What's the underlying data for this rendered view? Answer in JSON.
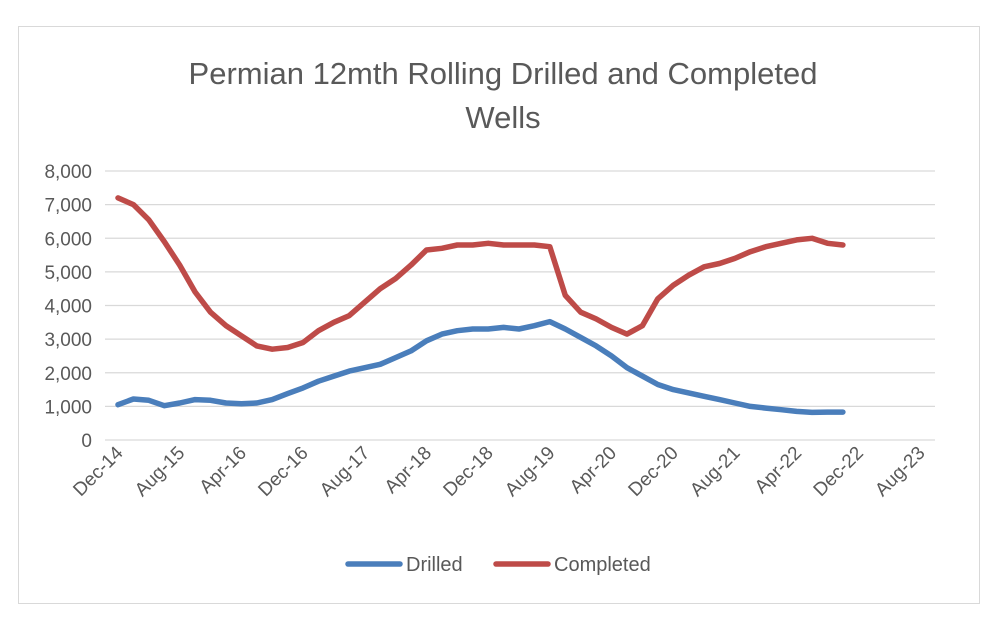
{
  "chart_data": {
    "type": "line",
    "title_lines": [
      "Permian 12mth Rolling Drilled and Completed",
      "Wells"
    ],
    "xlabel": "",
    "ylabel": "",
    "ylim": [
      0,
      8000
    ],
    "y_ticks": [
      0,
      1000,
      2000,
      3000,
      4000,
      5000,
      6000,
      7000,
      8000
    ],
    "y_tick_labels": [
      "0",
      "1,000",
      "2,000",
      "3,000",
      "4,000",
      "5,000",
      "6,000",
      "7,000",
      "8,000"
    ],
    "x_tick_labels": [
      "Dec-14",
      "Aug-15",
      "Apr-16",
      "Dec-16",
      "Aug-17",
      "Apr-18",
      "Dec-18",
      "Aug-19",
      "Apr-20",
      "Dec-20",
      "Aug-21",
      "Apr-22",
      "Dec-22",
      "Aug-23"
    ],
    "x_tick_month_index": [
      0,
      8,
      16,
      24,
      32,
      40,
      48,
      56,
      64,
      72,
      80,
      88,
      96,
      104
    ],
    "x_month_range": [
      0,
      104
    ],
    "grid": true,
    "legend_position": "bottom",
    "series": [
      {
        "name": "Drilled",
        "color": "#4a7ebb",
        "points": [
          [
            0,
            1050
          ],
          [
            2,
            1220
          ],
          [
            4,
            1180
          ],
          [
            6,
            1020
          ],
          [
            8,
            1100
          ],
          [
            10,
            1200
          ],
          [
            12,
            1180
          ],
          [
            14,
            1100
          ],
          [
            16,
            1080
          ],
          [
            18,
            1100
          ],
          [
            20,
            1200
          ],
          [
            22,
            1380
          ],
          [
            24,
            1550
          ],
          [
            26,
            1750
          ],
          [
            28,
            1900
          ],
          [
            30,
            2050
          ],
          [
            32,
            2150
          ],
          [
            34,
            2250
          ],
          [
            36,
            2450
          ],
          [
            38,
            2650
          ],
          [
            40,
            2950
          ],
          [
            42,
            3150
          ],
          [
            44,
            3250
          ],
          [
            46,
            3300
          ],
          [
            48,
            3300
          ],
          [
            50,
            3350
          ],
          [
            52,
            3300
          ],
          [
            54,
            3400
          ],
          [
            56,
            3520
          ],
          [
            58,
            3300
          ],
          [
            60,
            3050
          ],
          [
            62,
            2800
          ],
          [
            64,
            2500
          ],
          [
            66,
            2150
          ],
          [
            68,
            1900
          ],
          [
            70,
            1650
          ],
          [
            72,
            1500
          ],
          [
            74,
            1400
          ],
          [
            76,
            1300
          ],
          [
            78,
            1200
          ],
          [
            80,
            1100
          ],
          [
            82,
            1000
          ],
          [
            84,
            950
          ],
          [
            86,
            900
          ],
          [
            88,
            850
          ],
          [
            90,
            820
          ],
          [
            92,
            830
          ],
          [
            94,
            830
          ]
        ]
      },
      {
        "name": "Completed",
        "color": "#be4b48",
        "points": [
          [
            0,
            7200
          ],
          [
            2,
            7000
          ],
          [
            4,
            6550
          ],
          [
            6,
            5900
          ],
          [
            8,
            5200
          ],
          [
            10,
            4400
          ],
          [
            12,
            3800
          ],
          [
            14,
            3400
          ],
          [
            16,
            3100
          ],
          [
            18,
            2800
          ],
          [
            20,
            2700
          ],
          [
            22,
            2750
          ],
          [
            24,
            2900
          ],
          [
            26,
            3250
          ],
          [
            28,
            3500
          ],
          [
            30,
            3700
          ],
          [
            32,
            4100
          ],
          [
            34,
            4500
          ],
          [
            36,
            4800
          ],
          [
            38,
            5200
          ],
          [
            40,
            5650
          ],
          [
            42,
            5700
          ],
          [
            44,
            5800
          ],
          [
            46,
            5800
          ],
          [
            48,
            5850
          ],
          [
            50,
            5800
          ],
          [
            52,
            5800
          ],
          [
            54,
            5800
          ],
          [
            56,
            5750
          ],
          [
            58,
            4300
          ],
          [
            60,
            3800
          ],
          [
            62,
            3600
          ],
          [
            64,
            3350
          ],
          [
            66,
            3150
          ],
          [
            68,
            3400
          ],
          [
            70,
            4200
          ],
          [
            72,
            4600
          ],
          [
            74,
            4900
          ],
          [
            76,
            5150
          ],
          [
            78,
            5250
          ],
          [
            80,
            5400
          ],
          [
            82,
            5600
          ],
          [
            84,
            5750
          ],
          [
            86,
            5850
          ],
          [
            88,
            5950
          ],
          [
            90,
            6000
          ],
          [
            92,
            5850
          ],
          [
            94,
            5800
          ]
        ]
      }
    ]
  }
}
